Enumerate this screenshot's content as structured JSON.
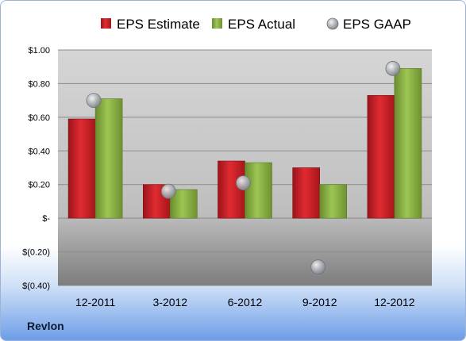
{
  "company_label": "Revlon",
  "colors": {
    "estimate": "#cc1f26",
    "actual": "#8ab144",
    "gaap": "#a3a7ac"
  },
  "chart_data": {
    "type": "bar",
    "categories": [
      "12-2011",
      "3-2012",
      "6-2012",
      "9-2012",
      "12-2012"
    ],
    "series": [
      {
        "name": "EPS Estimate",
        "kind": "bar",
        "values": [
          0.59,
          0.2,
          0.34,
          0.3,
          0.73
        ]
      },
      {
        "name": "EPS Actual",
        "kind": "bar",
        "values": [
          0.71,
          0.17,
          0.33,
          0.2,
          0.89
        ]
      },
      {
        "name": "EPS GAAP",
        "kind": "marker",
        "values": [
          0.7,
          0.16,
          0.21,
          -0.29,
          0.89
        ]
      }
    ],
    "ylim": [
      -0.4,
      1.0
    ],
    "yticks": [
      1.0,
      0.8,
      0.6,
      0.4,
      0.2,
      0,
      -0.2,
      -0.4
    ],
    "ytick_labels": [
      "$1.00",
      "$0.80",
      "$0.60",
      "$0.40",
      "$0.20",
      "$-",
      "$(0.20)",
      "$(0.40)"
    ],
    "legend_position": "top",
    "grid": true
  }
}
